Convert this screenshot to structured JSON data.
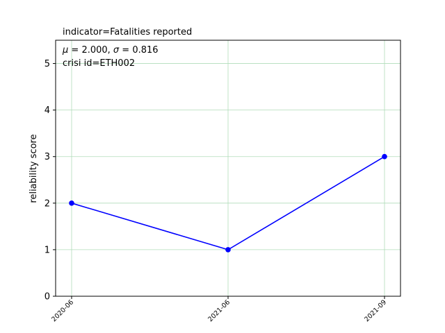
{
  "chart_data": {
    "type": "line",
    "title": "indicator=Fatalities reported",
    "xlabel": "",
    "ylabel": "reliability score",
    "categories": [
      "2020-06",
      "2021-06",
      "2021-09"
    ],
    "series": [
      {
        "values": [
          2,
          1,
          3
        ],
        "color": "#0000ff",
        "marker": "circle"
      }
    ],
    "ylim": [
      0,
      5.5
    ],
    "yticks": [
      0,
      1,
      2,
      3,
      4,
      5
    ],
    "grid": true,
    "grid_color": "#b0dcb9",
    "annotations": {
      "stats": "μ = 2.000,  σ = 0.816",
      "crisis_id": "crisi id=ETH002"
    }
  }
}
